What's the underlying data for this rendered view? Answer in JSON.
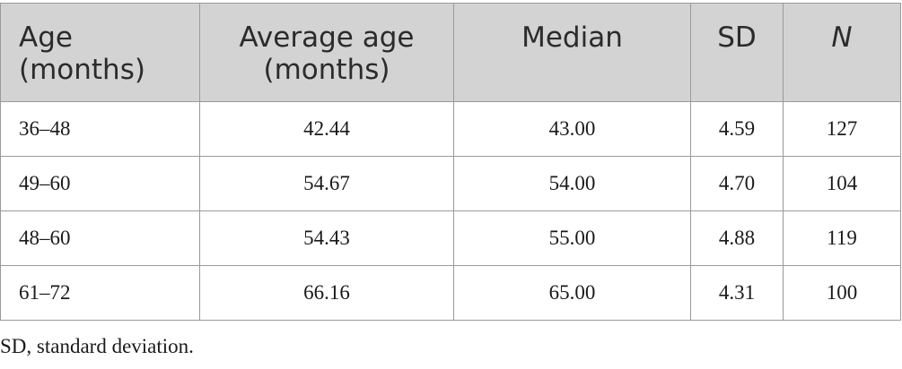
{
  "table": {
    "headers": {
      "age": "Age\n(months)",
      "average_age": "Average age\n(months)",
      "median": "Median",
      "sd": "SD",
      "n": "N"
    },
    "rows": [
      {
        "age": "36–48",
        "average_age": "42.44",
        "median": "43.00",
        "sd": "4.59",
        "n": "127"
      },
      {
        "age": "49–60",
        "average_age": "54.67",
        "median": "54.00",
        "sd": "4.70",
        "n": "104"
      },
      {
        "age": "48–60",
        "average_age": "54.43",
        "median": "55.00",
        "sd": "4.88",
        "n": "119"
      },
      {
        "age": "61–72",
        "average_age": "66.16",
        "median": "65.00",
        "sd": "4.31",
        "n": "100"
      }
    ]
  },
  "footnote": "SD, standard deviation."
}
